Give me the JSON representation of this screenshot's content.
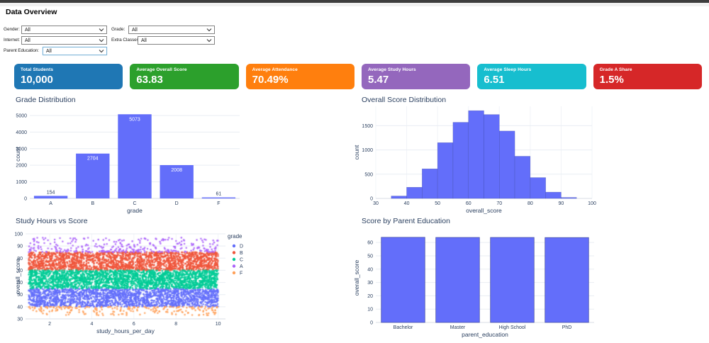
{
  "page": {
    "title": "Data Overview"
  },
  "filters": {
    "gender": {
      "label": "Gender:",
      "value": "All"
    },
    "grade": {
      "label": "Grade:",
      "value": "All"
    },
    "internet": {
      "label": "Internet:",
      "value": "All"
    },
    "extra_classes": {
      "label": "Extra Classes:",
      "value": "All"
    },
    "parent_education": {
      "label": "Parent Education:",
      "value": "All"
    }
  },
  "kpi_cards": [
    {
      "label": "Total Students",
      "value": "10,000",
      "color": "#1f77b4"
    },
    {
      "label": "Average Overall Score",
      "value": "63.83",
      "color": "#2ca02c"
    },
    {
      "label": "Average Attendance",
      "value": "70.49%",
      "color": "#ff7f0e"
    },
    {
      "label": "Average Study Hours",
      "value": "5.47",
      "color": "#9467bd"
    },
    {
      "label": "Average Sleep Hours",
      "value": "6.51",
      "color": "#17becf"
    },
    {
      "label": "Grade A Share",
      "value": "1.5%",
      "color": "#d62728"
    }
  ],
  "chart_data": [
    {
      "id": "grade_distribution",
      "type": "bar",
      "title": "Grade Distribution",
      "categories": [
        "A",
        "B",
        "C",
        "D",
        "F"
      ],
      "values": [
        154,
        2704,
        5073,
        2008,
        61
      ],
      "xlabel": "grade",
      "ylabel": "count",
      "ylim": [
        0,
        5340
      ],
      "yticks": [
        0,
        1000,
        2000,
        3000,
        4000,
        5000
      ],
      "bar_color": "#636efa",
      "show_values": true,
      "value_label_inside_color": "#ffffff",
      "value_label_outside_color": "#2a3f5f"
    },
    {
      "id": "overall_score_distribution",
      "type": "histogram",
      "title": "Overall Score Distribution",
      "xlabel": "overall_score",
      "ylabel": "count",
      "xlim": [
        30,
        100
      ],
      "ylim": [
        0,
        1900
      ],
      "xticks": [
        30,
        40,
        50,
        60,
        70,
        80,
        90,
        100
      ],
      "yticks": [
        0,
        500,
        1000,
        1500
      ],
      "bin_start": 35,
      "bin_width": 5,
      "counts": [
        50,
        230,
        610,
        1150,
        1570,
        1810,
        1730,
        1390,
        870,
        430,
        130,
        20
      ],
      "bar_color": "#636efa"
    },
    {
      "id": "study_hours_vs_score",
      "type": "scatter",
      "title": "Study Hours vs Score",
      "xlabel": "study_hours_per_day",
      "ylabel": "overall_score",
      "xlim": [
        0.85,
        10.35
      ],
      "ylim": [
        30,
        100
      ],
      "xticks": [
        2,
        4,
        6,
        8,
        10
      ],
      "yticks": [
        30,
        40,
        50,
        60,
        70,
        80,
        90,
        100
      ],
      "legend_title": "grade",
      "x_range": [
        1,
        10
      ],
      "series": [
        {
          "name": "D",
          "color": "#636efa",
          "y_range": [
            40,
            55
          ],
          "count": 2000,
          "density": "uniform"
        },
        {
          "name": "B",
          "color": "#ef553b",
          "y_range": [
            70,
            85
          ],
          "count": 2000,
          "density": "uniform"
        },
        {
          "name": "C",
          "color": "#00cc96",
          "y_range": [
            55,
            70
          ],
          "count": 2400,
          "density": "uniform"
        },
        {
          "name": "A",
          "color": "#ab63fa",
          "y_range": [
            85,
            97
          ],
          "count": 320,
          "density": "skew_low"
        },
        {
          "name": "F",
          "color": "#ffa15a",
          "y_range": [
            33,
            40
          ],
          "count": 230,
          "density": "skew_high"
        }
      ]
    },
    {
      "id": "score_by_parent_education",
      "type": "bar",
      "title": "Score by Parent Education",
      "categories": [
        "Bachelor",
        "Master",
        "High School",
        "PhD"
      ],
      "values": [
        63.9,
        63.8,
        63.8,
        63.7
      ],
      "xlabel": "parent_education",
      "ylabel": "overall_score",
      "ylim": [
        0,
        67
      ],
      "yticks": [
        0,
        10,
        20,
        30,
        40,
        50,
        60
      ],
      "bar_color": "#636efa",
      "bar_border": "#2f3a8f",
      "show_values": false
    }
  ]
}
